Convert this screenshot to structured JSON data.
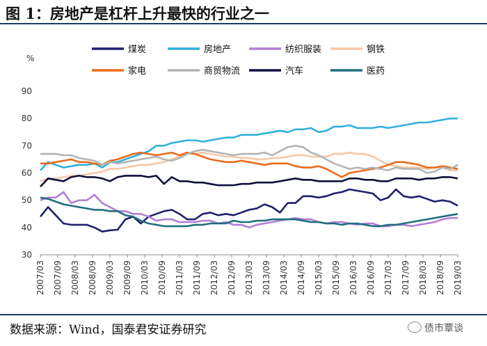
{
  "header": {
    "title": "图 1：房地产是杠杆上升最快的行业之一"
  },
  "footer": {
    "source": "数据来源：Wind，国泰君安证券研究",
    "watermark": "债市覃谈"
  },
  "chart_data": {
    "type": "line",
    "title": "图 1：房地产是杠杆上升最快的行业之一",
    "ylabel": "%",
    "xlabel": "",
    "ylim": [
      30,
      90
    ],
    "yticks": [
      30,
      40,
      50,
      60,
      70,
      80,
      90
    ],
    "grid": false,
    "legend_position": "top",
    "x_tick_labels": [
      "2007/03",
      "2007/09",
      "2008/03",
      "2008/09",
      "2009/03",
      "2009/09",
      "2010/03",
      "2010/09",
      "2011/03",
      "2011/09",
      "2012/03",
      "2012/09",
      "2013/03",
      "2013/09",
      "2014/03",
      "2014/09",
      "2015/03",
      "2015/09",
      "2016/03",
      "2016/09",
      "2017/03",
      "2017/09",
      "2018/03",
      "2018/09",
      "2019/03"
    ],
    "series": [
      {
        "name": "煤炭",
        "color": "#1f1f6e",
        "values": [
          44,
          47.5,
          44.5,
          41.5,
          41,
          41,
          41,
          40,
          38.5,
          39,
          39.2,
          43,
          44,
          41.5,
          44,
          45,
          46,
          46.5,
          45,
          43,
          43,
          45,
          45.5,
          44.5,
          45,
          44.5,
          45.5,
          46.5,
          47,
          48.5,
          47.5,
          45.5,
          49,
          49,
          51.5,
          51.5,
          51,
          51.5,
          52.5,
          53,
          54,
          53.5,
          53,
          52.5,
          50,
          51,
          54,
          51.5,
          51,
          51.5,
          50.5,
          49.5,
          50,
          49.5,
          48
        ]
      },
      {
        "name": "房地产",
        "color": "#31b0dd",
        "values": [
          61,
          64,
          63,
          62,
          62.5,
          63,
          63,
          63.5,
          62,
          64,
          64,
          65,
          66,
          67,
          68,
          70,
          70,
          71,
          71.5,
          72,
          72,
          71.5,
          72,
          72.5,
          73,
          73,
          74,
          74,
          74,
          74.5,
          75,
          75.5,
          75,
          76,
          76,
          76.5,
          75,
          75.5,
          77,
          77,
          77.5,
          76.5,
          76.5,
          76.5,
          77,
          76.5,
          77,
          77.5,
          78,
          78.5,
          78.5,
          79,
          79.5,
          80,
          80
        ]
      },
      {
        "name": "纺织服装",
        "color": "#b07fd6",
        "values": [
          50,
          51,
          51,
          53,
          49,
          50,
          50,
          52,
          49,
          47.5,
          46,
          46,
          45,
          45,
          44,
          42.5,
          43,
          43,
          42,
          42,
          42,
          42.5,
          42.5,
          41.5,
          42,
          41,
          41,
          40,
          41,
          41.5,
          42,
          42.5,
          43,
          43.5,
          43,
          43,
          42,
          41.5,
          42,
          42,
          41.5,
          41,
          41.5,
          41.5,
          40.5,
          40.5,
          41,
          41,
          40.5,
          41,
          41.5,
          42,
          43,
          43.5,
          43.5
        ]
      },
      {
        "name": "钢铁",
        "color": "#f6c8a4",
        "values": [
          57,
          58,
          58,
          58.5,
          59,
          59,
          59.5,
          60,
          60.5,
          61.5,
          61.5,
          62,
          62.5,
          63,
          63,
          63.5,
          64,
          65,
          66,
          67,
          67,
          67.5,
          67,
          66.5,
          66,
          66,
          65.5,
          65.5,
          65,
          65,
          65.5,
          65.5,
          66,
          66.5,
          66.5,
          66,
          66,
          66,
          67,
          67,
          67.5,
          67,
          67,
          66,
          64.5,
          63,
          62.5,
          62,
          62,
          62,
          61.5,
          62,
          62,
          61,
          61
        ]
      },
      {
        "name": "家电",
        "color": "#ec6a1c",
        "values": [
          63.5,
          63.5,
          64,
          64.5,
          65,
          64,
          64,
          63.5,
          63,
          64.5,
          65,
          66,
          67,
          67.5,
          67,
          66.5,
          67,
          67.5,
          66.5,
          67.5,
          67,
          66,
          65,
          64.5,
          64,
          64,
          64.5,
          64,
          63.5,
          63,
          63.5,
          63.5,
          63.5,
          62.5,
          62,
          62,
          62.5,
          61.5,
          60,
          58.5,
          60,
          60.5,
          61,
          61.5,
          62,
          63,
          64,
          64,
          63.5,
          63,
          62,
          62,
          62.5,
          62,
          61.5
        ]
      },
      {
        "name": "商贸物流",
        "color": "#b4b4b4",
        "values": [
          67,
          67,
          67,
          66.5,
          66.5,
          65.5,
          65,
          64.5,
          63,
          64,
          63.5,
          64,
          64.5,
          65,
          65.5,
          66,
          65,
          64.5,
          65.5,
          67,
          68,
          68.5,
          68,
          67.5,
          67,
          66.5,
          67,
          67,
          67,
          67.5,
          66.5,
          68,
          69.5,
          70,
          69.5,
          67.5,
          66.5,
          65,
          63.5,
          62.5,
          61.5,
          62,
          61.5,
          62,
          61.5,
          61,
          62,
          61.5,
          61.5,
          61.5,
          60,
          60.5,
          62,
          61.5,
          63
        ]
      },
      {
        "name": "汽车",
        "color": "#0f0f3d",
        "values": [
          55,
          58,
          57.5,
          57,
          58.5,
          59,
          58.5,
          58.5,
          58,
          57,
          58.5,
          59,
          59,
          59,
          58.5,
          59,
          56,
          58.5,
          57,
          57,
          56.5,
          56.5,
          56,
          55.5,
          55.5,
          55.5,
          56,
          56,
          56.5,
          56.5,
          56.5,
          57,
          57.5,
          58,
          57.5,
          57.5,
          57,
          57,
          57,
          57,
          58,
          58,
          57.5,
          57.5,
          57,
          57,
          58,
          58,
          58,
          57.5,
          58,
          58,
          58.5,
          58.5,
          58
        ]
      },
      {
        "name": "医药",
        "color": "#1f6e7c",
        "values": [
          51,
          50.5,
          49.5,
          48.5,
          48,
          47.5,
          47,
          46.5,
          46.5,
          46,
          46,
          44.5,
          44,
          42.5,
          41.5,
          41,
          40.5,
          40.5,
          40.5,
          40.5,
          41,
          41,
          41.5,
          41.5,
          41.5,
          42.5,
          42,
          42,
          42.5,
          42.5,
          43,
          43,
          43,
          43,
          42.5,
          42,
          42,
          41.5,
          41.5,
          41,
          41.5,
          41.5,
          41,
          40.5,
          40.5,
          41,
          41,
          41.5,
          42,
          42.5,
          43,
          43.5,
          44,
          44.5,
          45
        ]
      }
    ]
  }
}
